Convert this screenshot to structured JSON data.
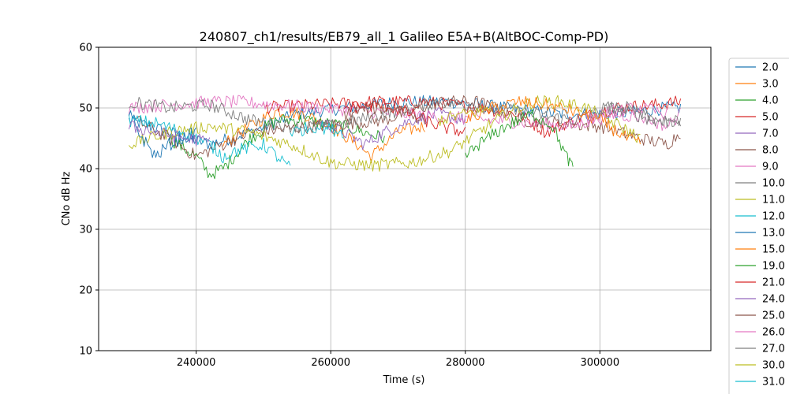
{
  "chart_data": {
    "type": "line",
    "title": "240807_ch1/results/EB79_all_1 Galileo E5A+B(AltBOC-Comp-PD)",
    "xlabel": "Time (s)",
    "ylabel": "CNo dB Hz",
    "xlim": [
      225500,
      316500
    ],
    "ylim": [
      10,
      60
    ],
    "xticks": [
      240000,
      260000,
      280000,
      300000
    ],
    "yticks": [
      10,
      20,
      30,
      40,
      50,
      60
    ],
    "grid": true,
    "legend_placement": "right, outside plot (clipped at bottom)",
    "series": [
      {
        "name": "2.0",
        "color": "#1f77b4",
        "points": [
          [
            230000,
            48
          ],
          [
            236000,
            46
          ],
          [
            242000,
            44
          ],
          [
            248000,
            46
          ],
          [
            255000,
            49
          ],
          [
            262000,
            50
          ],
          [
            270000,
            51
          ],
          [
            278000,
            51
          ],
          [
            286000,
            50
          ],
          [
            294000,
            49
          ],
          [
            302000,
            49
          ],
          [
            310000,
            50
          ],
          [
            312000,
            50
          ]
        ]
      },
      {
        "name": "3.0",
        "color": "#ff7f0e",
        "points": [
          [
            244000,
            44
          ],
          [
            248000,
            47
          ],
          [
            252000,
            49.5
          ],
          [
            256000,
            49
          ],
          [
            260000,
            47
          ],
          [
            264000,
            44
          ],
          [
            266000,
            42
          ],
          [
            270000,
            46
          ],
          [
            274000,
            47
          ]
        ]
      },
      {
        "name": "4.0",
        "color": "#2ca02c",
        "points": [
          [
            236000,
            45
          ],
          [
            240000,
            42
          ],
          [
            242000,
            39
          ],
          [
            244000,
            40
          ],
          [
            248000,
            45
          ],
          [
            252000,
            48
          ],
          [
            256000,
            48
          ],
          [
            262000,
            47
          ],
          [
            268000,
            45
          ]
        ]
      },
      {
        "name": "5.0",
        "color": "#d62728",
        "points": [
          [
            250000,
            50
          ],
          [
            258000,
            50.5
          ],
          [
            266000,
            51
          ],
          [
            274000,
            51
          ],
          [
            282000,
            50
          ],
          [
            288000,
            49
          ],
          [
            292000,
            46
          ],
          [
            296000,
            48
          ],
          [
            302000,
            50
          ],
          [
            308000,
            50.5
          ],
          [
            312000,
            51
          ]
        ]
      },
      {
        "name": "7.0",
        "color": "#9467bd",
        "points": [
          [
            258000,
            48
          ],
          [
            262000,
            46
          ],
          [
            265000,
            44
          ],
          [
            268000,
            46
          ],
          [
            272000,
            48
          ],
          [
            276000,
            49
          ],
          [
            280000,
            48
          ]
        ]
      },
      {
        "name": "8.0",
        "color": "#8c564b",
        "points": [
          [
            231000,
            48
          ],
          [
            236000,
            45
          ],
          [
            240000,
            42
          ],
          [
            244000,
            44
          ],
          [
            248000,
            46
          ],
          [
            268000,
            48
          ],
          [
            276000,
            51
          ],
          [
            282000,
            51
          ],
          [
            288000,
            48
          ],
          [
            300000,
            47
          ],
          [
            306000,
            45
          ],
          [
            310000,
            44
          ],
          [
            312000,
            46
          ]
        ]
      },
      {
        "name": "9.0",
        "color": "#e377c2",
        "points": [
          [
            230000,
            50
          ],
          [
            236000,
            50.5
          ],
          [
            242000,
            51
          ],
          [
            246000,
            51
          ],
          [
            296000,
            47
          ],
          [
            302000,
            49
          ],
          [
            306000,
            48.5
          ],
          [
            310000,
            47
          ],
          [
            312000,
            49
          ]
        ]
      },
      {
        "name": "10.0",
        "color": "#7f7f7f",
        "points": [
          [
            230000,
            51
          ],
          [
            236000,
            50
          ],
          [
            242000,
            50.5
          ],
          [
            248000,
            48
          ],
          [
            254000,
            47
          ],
          [
            260000,
            47
          ],
          [
            268000,
            49
          ],
          [
            276000,
            51
          ],
          [
            284000,
            50
          ],
          [
            290000,
            49
          ],
          [
            296000,
            48
          ],
          [
            302000,
            50
          ],
          [
            308000,
            48
          ],
          [
            312000,
            48
          ]
        ]
      },
      {
        "name": "11.0",
        "color": "#bcbd22",
        "points": [
          [
            230000,
            44
          ],
          [
            236000,
            46
          ],
          [
            242000,
            47
          ],
          [
            248000,
            46
          ],
          [
            254000,
            44
          ],
          [
            260000,
            41
          ],
          [
            266000,
            40.5
          ],
          [
            272000,
            41
          ],
          [
            278000,
            43
          ],
          [
            282000,
            46
          ],
          [
            286000,
            49
          ],
          [
            290000,
            51
          ],
          [
            294000,
            51
          ],
          [
            298000,
            50
          ],
          [
            303000,
            47
          ],
          [
            306000,
            45
          ]
        ]
      },
      {
        "name": "12.0",
        "color": "#17becf",
        "points": [
          [
            230000,
            48
          ],
          [
            234000,
            47.5
          ],
          [
            238000,
            46
          ],
          [
            242000,
            44
          ],
          [
            244000,
            42
          ],
          [
            246000,
            43
          ],
          [
            250000,
            44
          ],
          [
            252000,
            42
          ],
          [
            254000,
            40
          ]
        ]
      },
      {
        "name": "13.0",
        "color": "#1f77b4",
        "points": [
          [
            230000,
            49
          ],
          [
            232000,
            45
          ],
          [
            234000,
            42
          ],
          [
            236000,
            44
          ],
          [
            238000,
            45
          ],
          [
            240000,
            46
          ]
        ]
      },
      {
        "name": "15.0",
        "color": "#ff7f0e",
        "points": [
          [
            280000,
            48
          ],
          [
            284000,
            50
          ],
          [
            288000,
            51
          ],
          [
            292000,
            50.5
          ],
          [
            296000,
            49.5
          ],
          [
            300000,
            48
          ],
          [
            304000,
            45
          ],
          [
            306000,
            44
          ]
        ]
      },
      {
        "name": "19.0",
        "color": "#2ca02c",
        "points": [
          [
            280000,
            42
          ],
          [
            282000,
            44
          ],
          [
            286000,
            47
          ],
          [
            290000,
            49
          ],
          [
            293000,
            47
          ],
          [
            295000,
            42
          ],
          [
            296000,
            40
          ]
        ]
      },
      {
        "name": "21.0",
        "color": "#d62728",
        "points": [
          [
            262000,
            50
          ],
          [
            268000,
            50.5
          ],
          [
            272000,
            49
          ],
          [
            276000,
            47
          ],
          [
            280000,
            46
          ]
        ]
      },
      {
        "name": "24.0",
        "color": "#9467bd",
        "points": [
          [
            230000,
            47
          ],
          [
            234000,
            46
          ],
          [
            238000,
            45
          ],
          [
            242000,
            44.5
          ]
        ]
      },
      {
        "name": "25.0",
        "color": "#8c564b",
        "points": [
          [
            262000,
            49
          ],
          [
            266000,
            50
          ],
          [
            270000,
            50
          ],
          [
            274000,
            48
          ]
        ]
      },
      {
        "name": "26.0",
        "color": "#e377c2",
        "points": [
          [
            298000,
            48
          ],
          [
            302000,
            49.5
          ],
          [
            306000,
            50
          ],
          [
            310000,
            49
          ]
        ]
      },
      {
        "name": "27.0",
        "color": "#7f7f7f",
        "points": [
          [
            300000,
            50
          ],
          [
            304000,
            50
          ],
          [
            308000,
            48
          ],
          [
            312000,
            47
          ]
        ]
      },
      {
        "name": "30.0",
        "color": "#bcbd22",
        "points": [
          [
            276000,
            48
          ],
          [
            280000,
            49
          ],
          [
            284000,
            50
          ]
        ]
      },
      {
        "name": "31.0",
        "color": "#17becf",
        "points": [
          [
            254000,
            46
          ],
          [
            258000,
            47
          ],
          [
            262000,
            46
          ]
        ]
      }
    ]
  }
}
